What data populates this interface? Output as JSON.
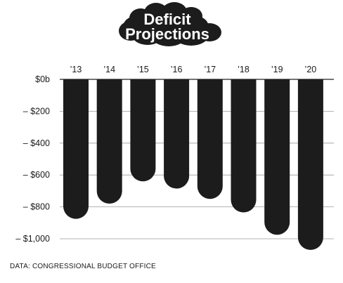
{
  "colors": {
    "bar": "#1c1c1c",
    "cloud": "#1c1c1c",
    "title_text": "#ffffff",
    "grid": "#9a9a9a",
    "text": "#1a1a1a"
  },
  "source": "DATA: CONGRESSIONAL BUDGET OFFICE",
  "chart_data": {
    "type": "bar",
    "title": "Deficit Projections",
    "title_lines": [
      "Deficit",
      "Projections"
    ],
    "xlabel": "",
    "ylabel": "",
    "categories": [
      "’13",
      "’14",
      "’15",
      "’16",
      "’17",
      "’18",
      "’19",
      "’20"
    ],
    "values": [
      -875,
      -780,
      -640,
      -685,
      -750,
      -835,
      -975,
      -1070
    ],
    "ylim": [
      -1050,
      0
    ],
    "yticks": [
      0,
      -200,
      -400,
      -600,
      -800,
      -1000
    ],
    "ytick_labels": [
      "$0b",
      "– $200",
      "– $400",
      "– $600",
      "– $800",
      "– $1,000"
    ],
    "grid": true,
    "legend": "none"
  }
}
